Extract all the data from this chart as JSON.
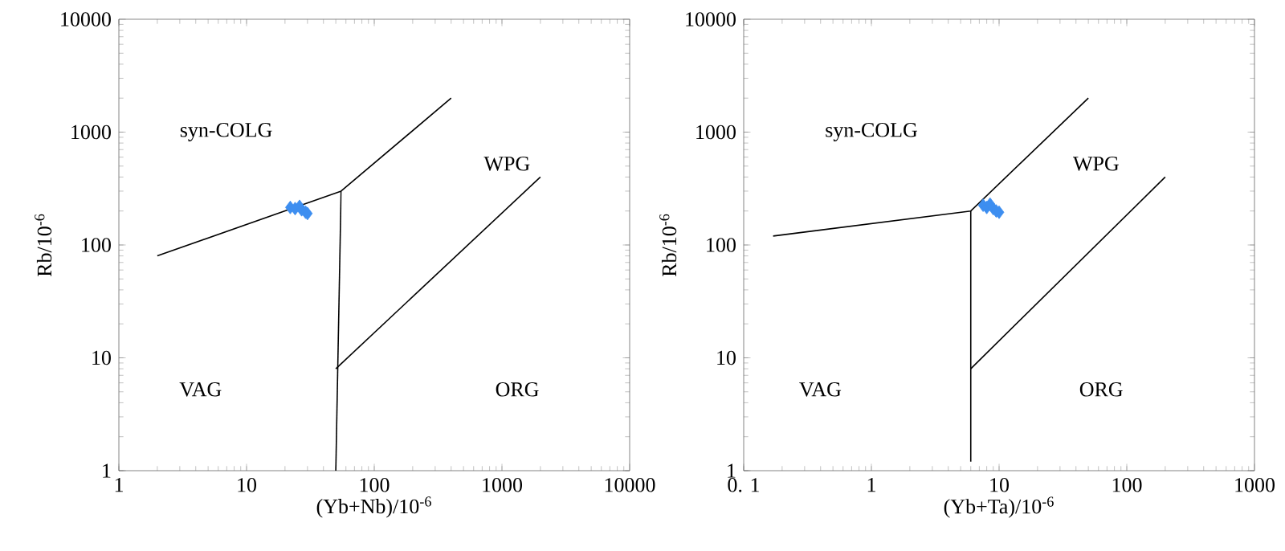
{
  "chart_data": [
    {
      "type": "scatter",
      "xlabel": "(Yb+Nb)/10$^{-6}$",
      "ylabel": "Rb/10$^{-6}$",
      "log": "xy",
      "xlim": [
        1,
        10000
      ],
      "ylim": [
        1,
        10000
      ],
      "xticks": [
        1,
        10,
        100,
        1000,
        10000
      ],
      "yticks": [
        1,
        10,
        100,
        1000,
        10000
      ],
      "series": [
        {
          "type": "line",
          "color": "#000000",
          "x": [
            2,
            55,
            400
          ],
          "values": [
            80,
            300,
            2000
          ]
        },
        {
          "type": "line",
          "color": "#000000",
          "x": [
            55,
            50
          ],
          "values": [
            300,
            1
          ]
        },
        {
          "type": "line",
          "color": "#000000",
          "x": [
            50,
            2000
          ],
          "values": [
            8,
            400
          ]
        },
        {
          "marker": "diamond",
          "color": "#3d8ef0",
          "x": [
            22,
            24,
            26,
            27,
            29,
            30
          ],
          "values": [
            215,
            210,
            220,
            205,
            195,
            190
          ]
        }
      ],
      "annotations": [
        "syn-COLG",
        "WPG",
        "VAG",
        "ORG"
      ]
    },
    {
      "type": "scatter",
      "xlabel": "(Yb+Ta)/10$^{-6}$",
      "ylabel": "Rb/10$^{-6}$",
      "log": "xy",
      "xlim": [
        0.1,
        1000
      ],
      "ylim": [
        1,
        10000
      ],
      "xticks": [
        {
          "value": 0.1,
          "label": "0. 1"
        },
        1,
        10,
        100,
        1000
      ],
      "yticks": [
        1,
        10,
        100,
        1000,
        10000
      ],
      "series": [
        {
          "type": "line",
          "color": "#000000",
          "x": [
            0.17,
            6,
            50
          ],
          "values": [
            120,
            200,
            2000
          ]
        },
        {
          "type": "line",
          "color": "#000000",
          "x": [
            6,
            6
          ],
          "values": [
            200,
            1.2
          ]
        },
        {
          "type": "line",
          "color": "#000000",
          "x": [
            6,
            200
          ],
          "values": [
            8,
            400
          ]
        },
        {
          "marker": "diamond",
          "color": "#3d8ef0",
          "x": [
            7.5,
            8,
            8.5,
            9,
            9.5,
            10
          ],
          "values": [
            225,
            215,
            230,
            210,
            200,
            195
          ]
        }
      ],
      "annotations": [
        "syn-COLG",
        "WPG",
        "VAG",
        "ORG"
      ]
    }
  ]
}
